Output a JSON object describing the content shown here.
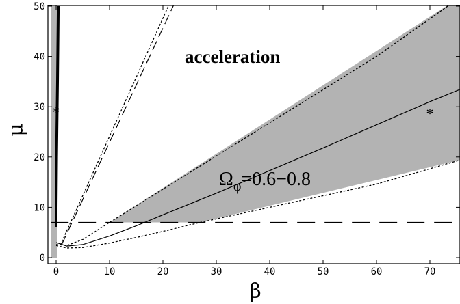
{
  "chart_data": {
    "type": "line",
    "xlabel": "β",
    "ylabel": "μ",
    "xlim": [
      -1,
      76
    ],
    "ylim": [
      -0.5,
      50
    ],
    "x_ticks": [
      0,
      10,
      20,
      30,
      40,
      50,
      60,
      70
    ],
    "y_ticks": [
      0,
      10,
      20,
      30,
      40,
      50
    ],
    "grid": false,
    "annotations": {
      "acceleration": "acceleration",
      "omega_symbol": "Ω",
      "omega_sub": "φ",
      "omega_range": "=0.6−0.8",
      "star": "*"
    },
    "shaded_region": {
      "upper": {
        "x": [
          10,
          76
        ],
        "y": [
          7,
          52
        ]
      },
      "lower": {
        "x": [
          27,
          76
        ],
        "y": [
          7,
          19.5
        ]
      },
      "left_band": {
        "x": [
          -1,
          0
        ],
        "y": [
          0,
          50
        ]
      }
    },
    "series": [
      {
        "style": "solid",
        "x": [
          0,
          2,
          5,
          10,
          15,
          20,
          30,
          40,
          50,
          60,
          70,
          76
        ],
        "y": [
          3,
          2.3,
          2.6,
          4.3,
          6.3,
          8.5,
          12.8,
          17.3,
          21.8,
          26.4,
          31.0,
          33.6
        ]
      },
      {
        "style": "dashed",
        "x": [
          1,
          25
        ],
        "y": [
          2.5,
          57
        ]
      },
      {
        "style": "dotted",
        "x": [
          0.8,
          24
        ],
        "y": [
          2.5,
          57
        ]
      },
      {
        "style": "dotted",
        "x": [
          0,
          2,
          5,
          10,
          15,
          20,
          27,
          40,
          50,
          60,
          76
        ],
        "y": [
          2.4,
          1.9,
          2.0,
          2.9,
          4.0,
          5.2,
          7.0,
          10.0,
          12.3,
          14.6,
          19.5
        ]
      },
      {
        "style": "dotted",
        "x": [
          0,
          2,
          5,
          10,
          20,
          30,
          40,
          50,
          60,
          76
        ],
        "y": [
          2.6,
          2.4,
          3.6,
          7.0,
          13.6,
          20.2,
          26.8,
          33.4,
          40.0,
          52
        ]
      },
      {
        "style": "dashed-long",
        "x": [
          -1,
          76
        ],
        "y": [
          7,
          7
        ]
      },
      {
        "style": "thick",
        "x": [
          0,
          0,
          0.08,
          0.25,
          0.4
        ],
        "y": [
          6,
          10,
          20,
          35,
          50
        ]
      }
    ],
    "markers": [
      {
        "x": 0,
        "y": 29.3
      },
      {
        "x": 70,
        "y": 29.0
      }
    ]
  }
}
